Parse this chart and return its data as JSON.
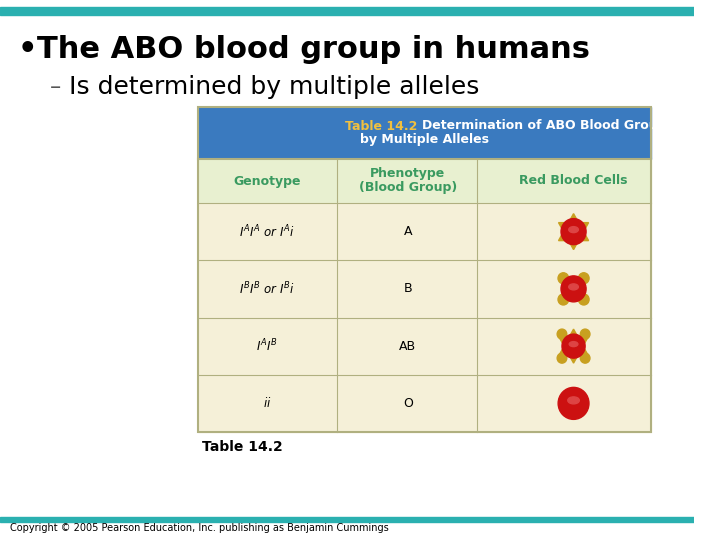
{
  "title": "The ABO blood group in humans",
  "subtitle": "Is determined by multiple alleles",
  "table_title_prefix": "Table 14.2",
  "table_title_main": "Determination of ABO Blood Group",
  "table_title_sub": "by Multiple Alleles",
  "col_headers": [
    "Genotype",
    "Phenotype",
    "(Blood Group)",
    "Red Blood Cells"
  ],
  "rows": [
    {
      "genotype": "$I^AI^A$ or $I^Ai$",
      "phenotype": "A"
    },
    {
      "genotype": "$I^BI^B$ or $I^Bi$",
      "phenotype": "B"
    },
    {
      "genotype": "$I^AI^B$",
      "phenotype": "AB"
    },
    {
      "genotype": "$ii$",
      "phenotype": "O"
    }
  ],
  "bg_color": "#ffffff",
  "top_bar_color": "#2ab0b0",
  "bottom_bar_color": "#2ab0b0",
  "table_header_bg": "#3a7abf",
  "table_header_text_prefix_color": "#f0c040",
  "table_header_text_color": "#ffffff",
  "table_subheader_bg": "#e8f0d0",
  "table_col_header_color": "#3a9a60",
  "table_row_bg": "#f5f0d8",
  "table_border_color": "#b0b080",
  "bullet_color": "#000000",
  "dash_color": "#555555",
  "copyright_text": "Copyright © 2005 Pearson Education, Inc. publishing as Benjamin Cummings",
  "table_caption": "Table 14.2",
  "cell_blood_types": [
    "A",
    "B",
    "AB",
    "O"
  ],
  "rbc_red": "#cc1111",
  "rbc_red_light": "#dd4444",
  "rbc_gold": "#c8a020"
}
